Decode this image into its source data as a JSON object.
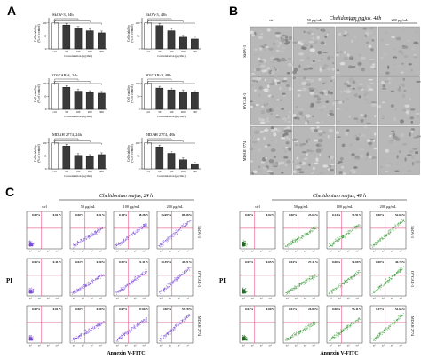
{
  "panels": {
    "a": "A",
    "b": "B",
    "c": "C"
  },
  "colors": {
    "bar_light": "#ffffff",
    "bar_dark": "#3a3a3a",
    "purple": "#7b4bd8",
    "pink": "#d46aa0",
    "green": "#3c9a3c",
    "magenta_line": "#e0306f",
    "micro_bg": "#b8b8b8"
  },
  "chart_data": [
    {
      "type": "bar",
      "title": "SkOV-3, 24h",
      "ylabel": "Cell viability\n(% of control)",
      "xlabel": "Concentration (μg/mL)",
      "categories": [
        "ctrl",
        "50",
        "100",
        "200",
        "300"
      ],
      "values": [
        100,
        92,
        80,
        70,
        62
      ],
      "ylim": [
        0,
        120
      ]
    },
    {
      "type": "bar",
      "title": "SkOV-3, 48h",
      "ylabel": "Cell viability\n(% of control)",
      "xlabel": "Concentration (μg/mL)",
      "categories": [
        "ctrl",
        "50",
        "100",
        "200",
        "300"
      ],
      "values": [
        100,
        90,
        70,
        45,
        38
      ],
      "ylim": [
        0,
        120
      ]
    },
    {
      "type": "bar",
      "title": "OVCAR-3, 24h",
      "ylabel": "Cell viability\n(% of control)",
      "xlabel": "Concentration (μg/mL)",
      "categories": [
        "ctrl",
        "50",
        "100",
        "200",
        "300"
      ],
      "values": [
        100,
        85,
        70,
        65,
        62
      ],
      "ylim": [
        0,
        120
      ]
    },
    {
      "type": "bar",
      "title": "OVCAR-3, 48h",
      "ylabel": "Cell viability\n(% of control)",
      "xlabel": "Concentration (μg/mL)",
      "categories": [
        "ctrl",
        "50",
        "100",
        "200",
        "300"
      ],
      "values": [
        100,
        82,
        75,
        68,
        65
      ],
      "ylim": [
        0,
        120
      ]
    },
    {
      "type": "bar",
      "title": "MDAH 2774, 24h",
      "ylabel": "Cell viability\n(% of control)",
      "xlabel": "Concentration (μg/mL)",
      "categories": [
        "ctrl",
        "50",
        "100",
        "200",
        "300"
      ],
      "values": [
        100,
        88,
        52,
        48,
        55
      ],
      "ylim": [
        0,
        120
      ]
    },
    {
      "type": "bar",
      "title": "MDAH 2774, 48h",
      "ylabel": "Cell viability\n(% of control)",
      "xlabel": "Concentration (μg/mL)",
      "categories": [
        "ctrl",
        "50",
        "100",
        "200",
        "300"
      ],
      "values": [
        100,
        85,
        60,
        35,
        20
      ],
      "ylim": [
        0,
        120
      ]
    }
  ],
  "micro": {
    "title": "Chelidonium majus, 48h",
    "cols": [
      "ctrl",
      "50 μg/mL",
      "100 μg/mL",
      "200 μg/mL"
    ],
    "rows": [
      "SkOV-3",
      "OVCAR-3",
      "MDAH 2774"
    ]
  },
  "flow_left": {
    "title": "Chelidonium majus, 24 h",
    "cols": [
      "ctrl",
      "50 μg/mL",
      "100 μg/mL",
      "200 μg/mL"
    ],
    "rows": [
      "SkOV-3",
      "OVCAR-3",
      "MDAH 2774"
    ],
    "ylabel": "PI",
    "xlabel": "Annexin V-FITC",
    "quadrants": [
      [
        [
          "0.00%",
          "0.01%"
        ],
        [
          "0.00%",
          "0.01%"
        ],
        [
          "0.14%",
          "38.28%"
        ],
        [
          "15.69%",
          "85.08%"
        ]
      ],
      [
        [
          "0.06%",
          "0.41%"
        ],
        [
          "0.02%",
          "0.00%"
        ],
        [
          "0.52%",
          "21.31%"
        ],
        [
          "10.39%",
          "43.91%"
        ]
      ],
      [
        [
          "0.00%",
          "0.01%"
        ],
        [
          "0.00%",
          "0.00%"
        ],
        [
          "0.67%",
          "37.66%"
        ],
        [
          "0.00%",
          "57.58%"
        ]
      ]
    ]
  },
  "flow_right": {
    "title": "Chelidonium majus, 48 h",
    "cols": [
      "ctrl",
      "50 μg/mL",
      "100 μg/mL",
      "200 μg/mL"
    ],
    "rows": [
      "SkOV-3",
      "OVCAR-3",
      "MDAH 2774"
    ],
    "ylabel": "PI",
    "xlabel": "Annexin V-FITC",
    "quadrants": [
      [
        [
          "0.00%",
          "0.02%"
        ],
        [
          "0.00%",
          "23.05%"
        ],
        [
          "0.24%",
          "35.91%"
        ],
        [
          "0.00%",
          "52.65%"
        ]
      ],
      [
        [
          "0.05%",
          "0.65%"
        ],
        [
          "0.04%",
          "27.41%"
        ],
        [
          "0.00%",
          "34.00%"
        ],
        [
          "0.00%",
          "44.78%"
        ]
      ],
      [
        [
          "0.04%",
          "0.00%"
        ],
        [
          "0.01%",
          "24.84%"
        ],
        [
          "0.00%",
          "55.11%"
        ],
        [
          "1.37%",
          "51.65%"
        ]
      ]
    ]
  }
}
